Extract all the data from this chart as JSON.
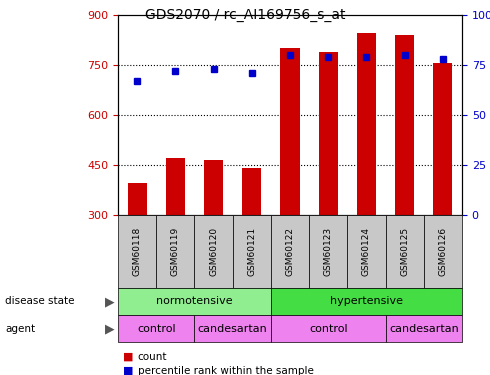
{
  "title": "GDS2070 / rc_AI169756_s_at",
  "samples": [
    "GSM60118",
    "GSM60119",
    "GSM60120",
    "GSM60121",
    "GSM60122",
    "GSM60123",
    "GSM60124",
    "GSM60125",
    "GSM60126"
  ],
  "bar_values": [
    395,
    470,
    465,
    440,
    800,
    790,
    845,
    840,
    755
  ],
  "percentile_values": [
    67,
    72,
    73,
    71,
    80,
    79,
    79,
    80,
    78
  ],
  "ylim_left": [
    300,
    900
  ],
  "ylim_right": [
    0,
    100
  ],
  "yticks_left": [
    300,
    450,
    600,
    750,
    900
  ],
  "yticks_right": [
    0,
    25,
    50,
    75,
    100
  ],
  "bar_color": "#cc0000",
  "dot_color": "#0000cc",
  "bar_bottom": 300,
  "disease_state_labels": [
    "normotensive",
    "hypertensive"
  ],
  "disease_state_color_norm": "#90ee90",
  "disease_state_color_hyp": "#44dd44",
  "agent_labels": [
    "control",
    "candesartan",
    "control",
    "candesartan"
  ],
  "agent_color": "#ee82ee",
  "grid_color": "#000000",
  "tick_label_color_left": "#cc0000",
  "tick_label_color_right": "#0000cc",
  "legend_count_label": "count",
  "legend_pct_label": "percentile rank within the sample",
  "xlabel_bg_color": "#c8c8c8",
  "figsize": [
    4.9,
    3.75
  ],
  "dpi": 100
}
